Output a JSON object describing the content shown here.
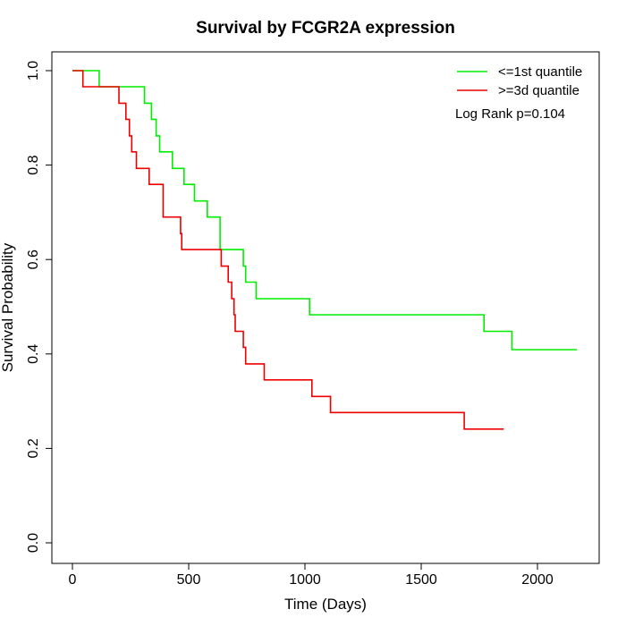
{
  "chart_data": {
    "type": "line",
    "title": "Survival by FCGR2A expression",
    "xlabel": "Time (Days)",
    "ylabel": "Survival Probability",
    "xlim": [
      0,
      2200
    ],
    "ylim": [
      0,
      1
    ],
    "x_ticks": [
      0,
      500,
      1000,
      1500,
      2000
    ],
    "y_ticks": [
      0.0,
      0.2,
      0.4,
      0.6,
      0.8,
      1.0
    ],
    "x_tick_labels": [
      "0",
      "500",
      "1000",
      "1500",
      "2000"
    ],
    "y_tick_labels": [
      "0.0",
      "0.2",
      "0.4",
      "0.6",
      "0.8",
      "1.0"
    ],
    "legend_position": "top-right",
    "annotation": "Log Rank p=0.104",
    "grid": false,
    "series": [
      {
        "name": "<=1st quantile",
        "color": "#00ee00",
        "step_points": [
          [
            0,
            1.0
          ],
          [
            115,
            0.966
          ],
          [
            310,
            0.931
          ],
          [
            340,
            0.897
          ],
          [
            360,
            0.862
          ],
          [
            375,
            0.828
          ],
          [
            430,
            0.793
          ],
          [
            480,
            0.759
          ],
          [
            525,
            0.724
          ],
          [
            580,
            0.69
          ],
          [
            635,
            0.621
          ],
          [
            735,
            0.586
          ],
          [
            745,
            0.552
          ],
          [
            790,
            0.517
          ],
          [
            1020,
            0.483
          ],
          [
            1770,
            0.448
          ],
          [
            1890,
            0.409
          ],
          [
            2170,
            0.409
          ]
        ]
      },
      {
        "name": ">=3d quantile",
        "color": "#ee0000",
        "step_points": [
          [
            0,
            1.0
          ],
          [
            45,
            0.966
          ],
          [
            200,
            0.931
          ],
          [
            230,
            0.897
          ],
          [
            245,
            0.862
          ],
          [
            255,
            0.828
          ],
          [
            275,
            0.793
          ],
          [
            330,
            0.759
          ],
          [
            390,
            0.69
          ],
          [
            465,
            0.655
          ],
          [
            470,
            0.621
          ],
          [
            640,
            0.586
          ],
          [
            670,
            0.552
          ],
          [
            685,
            0.517
          ],
          [
            695,
            0.483
          ],
          [
            700,
            0.448
          ],
          [
            735,
            0.414
          ],
          [
            745,
            0.379
          ],
          [
            825,
            0.345
          ],
          [
            1030,
            0.31
          ],
          [
            1110,
            0.276
          ],
          [
            1685,
            0.241
          ],
          [
            1855,
            0.241
          ]
        ]
      }
    ]
  }
}
